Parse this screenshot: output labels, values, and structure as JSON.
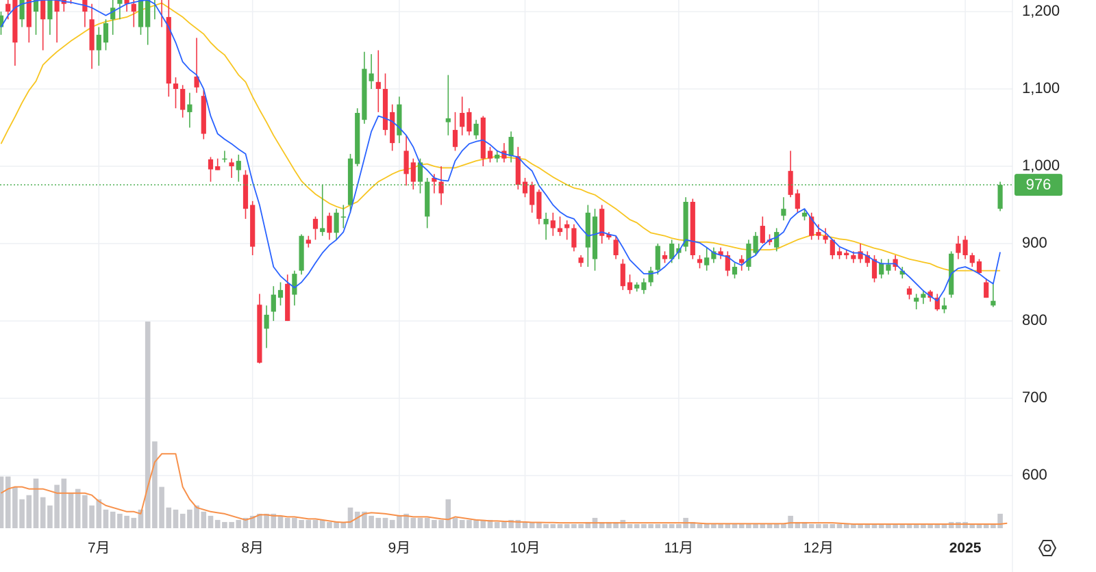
{
  "chart_data": {
    "type": "candlestick",
    "categories": [
      null,
      null,
      null,
      null,
      null,
      null,
      null,
      null,
      null,
      null,
      null,
      null,
      null,
      null,
      "7月",
      null,
      null,
      null,
      null,
      null,
      null,
      null,
      null,
      null,
      null,
      null,
      null,
      null,
      null,
      null,
      null,
      null,
      null,
      null,
      null,
      null,
      "8月",
      null,
      null,
      null,
      null,
      null,
      null,
      null,
      null,
      null,
      null,
      null,
      null,
      null,
      null,
      null,
      null,
      null,
      null,
      null,
      null,
      "9月",
      null,
      null,
      null,
      null,
      null,
      null,
      null,
      null,
      null,
      null,
      null,
      null,
      null,
      null,
      null,
      null,
      null,
      "10月",
      null,
      null,
      null,
      null,
      null,
      null,
      null,
      null,
      null,
      null,
      null,
      null,
      null,
      null,
      null,
      null,
      null,
      null,
      null,
      null,
      null,
      "11月",
      null,
      null,
      null,
      null,
      null,
      null,
      null,
      null,
      null,
      null,
      null,
      null,
      null,
      null,
      null,
      null,
      null,
      null,
      null,
      "12月",
      null,
      null,
      null,
      null,
      null,
      null,
      null,
      null,
      null,
      null,
      null,
      null,
      null,
      null,
      null,
      null,
      null,
      null,
      null,
      null,
      "2025",
      null,
      null,
      null,
      null,
      null
    ],
    "ohlc": [
      [
        1180,
        1200,
        1170,
        1195
      ],
      [
        1210,
        1230,
        1190,
        1200
      ],
      [
        1220,
        1240,
        1130,
        1160
      ],
      [
        1190,
        1240,
        1180,
        1230
      ],
      [
        1230,
        1250,
        1160,
        1180
      ],
      [
        1200,
        1240,
        1170,
        1220
      ],
      [
        1220,
        1250,
        1150,
        1190
      ],
      [
        1190,
        1240,
        1170,
        1230
      ],
      [
        1230,
        1260,
        1160,
        1200
      ],
      [
        1220,
        1260,
        1200,
        1210
      ],
      [
        1230,
        1260,
        1210,
        1215
      ],
      [
        1240,
        1270,
        1220,
        1230
      ],
      [
        1220,
        1250,
        1180,
        1200
      ],
      [
        1190,
        1210,
        1126,
        1150
      ],
      [
        1150,
        1180,
        1130,
        1170
      ],
      [
        1160,
        1190,
        1150,
        1185
      ],
      [
        1190,
        1220,
        1170,
        1205
      ],
      [
        1210,
        1240,
        1190,
        1220
      ],
      [
        1220,
        1250,
        1200,
        1210
      ],
      [
        1210,
        1240,
        1180,
        1200
      ],
      [
        1180,
        1250,
        1170,
        1235
      ],
      [
        1180,
        1250,
        1157,
        1220
      ],
      [
        1230,
        1260,
        1190,
        1240
      ],
      [
        1240,
        1260,
        1180,
        1215
      ],
      [
        1193,
        1215,
        1090,
        1107
      ],
      [
        1107,
        1115,
        1075,
        1100
      ],
      [
        1100,
        1105,
        1063,
        1073
      ],
      [
        1070,
        1095,
        1050,
        1080
      ],
      [
        1116,
        1166,
        1095,
        1102
      ],
      [
        1091,
        1100,
        1035,
        1042
      ],
      [
        1009,
        1012,
        980,
        996
      ],
      [
        1000,
        1010,
        995,
        995
      ],
      [
        1010,
        1020,
        1005,
        1010
      ],
      [
        1005,
        1010,
        985,
        1000
      ],
      [
        995,
        1015,
        980,
        1007
      ],
      [
        989,
        995,
        932,
        945
      ],
      [
        950,
        955,
        885,
        896
      ],
      [
        821,
        835,
        745,
        746
      ],
      [
        790,
        820,
        765,
        808
      ],
      [
        812,
        845,
        800,
        834
      ],
      [
        830,
        850,
        820,
        840
      ],
      [
        848,
        860,
        800,
        800
      ],
      [
        834,
        865,
        820,
        861
      ],
      [
        865,
        912,
        860,
        910
      ],
      [
        905,
        910,
        895,
        900
      ],
      [
        932,
        935,
        905,
        919
      ],
      [
        915,
        976,
        910,
        920
      ],
      [
        936,
        940,
        905,
        914
      ],
      [
        914,
        945,
        905,
        940
      ],
      [
        935,
        950,
        920,
        935
      ],
      [
        950,
        1016,
        940,
        1010
      ],
      [
        1003,
        1075,
        1000,
        1069
      ],
      [
        1060,
        1148,
        1055,
        1126
      ],
      [
        1110,
        1145,
        1100,
        1120
      ],
      [
        1109,
        1150,
        1070,
        1100
      ],
      [
        1100,
        1120,
        1040,
        1047
      ],
      [
        1070,
        1080,
        1020,
        1030
      ],
      [
        1040,
        1090,
        1030,
        1080
      ],
      [
        1020,
        1040,
        975,
        990
      ],
      [
        1005,
        1010,
        970,
        980
      ],
      [
        980,
        1010,
        965,
        1005
      ],
      [
        935,
        985,
        920,
        980
      ],
      [
        985,
        990,
        965,
        980
      ],
      [
        980,
        1000,
        950,
        965
      ],
      [
        1057,
        1118,
        1040,
        1062
      ],
      [
        1047,
        1070,
        1020,
        1025
      ],
      [
        1069,
        1090,
        1040,
        1051
      ],
      [
        1070,
        1075,
        1040,
        1045
      ],
      [
        1040,
        1060,
        1035,
        1055
      ],
      [
        1063,
        1065,
        1000,
        1010
      ],
      [
        1020,
        1025,
        1005,
        1010
      ],
      [
        1010,
        1020,
        1005,
        1015
      ],
      [
        1020,
        1030,
        1005,
        1010
      ],
      [
        1013,
        1045,
        1005,
        1038
      ],
      [
        1013,
        1025,
        970,
        976
      ],
      [
        980,
        985,
        960,
        965
      ],
      [
        976,
        980,
        940,
        950
      ],
      [
        967,
        970,
        925,
        932
      ],
      [
        925,
        940,
        905,
        932
      ],
      [
        930,
        940,
        910,
        920
      ],
      [
        920,
        935,
        910,
        915
      ],
      [
        925,
        930,
        905,
        920
      ],
      [
        920,
        925,
        890,
        895
      ],
      [
        882,
        885,
        870,
        875
      ],
      [
        895,
        950,
        870,
        940
      ],
      [
        880,
        945,
        865,
        935
      ],
      [
        945,
        950,
        900,
        910
      ],
      [
        912,
        915,
        905,
        908
      ],
      [
        905,
        910,
        880,
        885
      ],
      [
        874,
        880,
        840,
        845
      ],
      [
        850,
        860,
        835,
        840
      ],
      [
        842,
        850,
        838,
        847
      ],
      [
        840,
        855,
        835,
        850
      ],
      [
        850,
        870,
        845,
        865
      ],
      [
        866,
        900,
        860,
        897
      ],
      [
        885,
        890,
        875,
        880
      ],
      [
        880,
        905,
        875,
        900
      ],
      [
        888,
        900,
        880,
        894
      ],
      [
        896,
        960,
        890,
        954
      ],
      [
        954,
        958,
        880,
        885
      ],
      [
        880,
        885,
        868,
        875
      ],
      [
        872,
        895,
        865,
        882
      ],
      [
        880,
        895,
        875,
        890
      ],
      [
        890,
        895,
        880,
        885
      ],
      [
        885,
        890,
        858,
        865
      ],
      [
        860,
        875,
        855,
        870
      ],
      [
        880,
        885,
        865,
        875
      ],
      [
        870,
        905,
        865,
        900
      ],
      [
        888,
        915,
        885,
        910
      ],
      [
        923,
        935,
        900,
        901
      ],
      [
        905,
        912,
        898,
        902
      ],
      [
        895,
        920,
        890,
        915
      ],
      [
        936,
        960,
        930,
        945
      ],
      [
        994,
        1020,
        960,
        963
      ],
      [
        965,
        970,
        940,
        945
      ],
      [
        935,
        945,
        930,
        940
      ],
      [
        935,
        940,
        905,
        910
      ],
      [
        915,
        925,
        905,
        910
      ],
      [
        910,
        920,
        900,
        905
      ],
      [
        905,
        905,
        880,
        885
      ],
      [
        890,
        895,
        880,
        885
      ],
      [
        888,
        892,
        880,
        885
      ],
      [
        885,
        890,
        875,
        880
      ],
      [
        890,
        900,
        875,
        880
      ],
      [
        885,
        890,
        870,
        875
      ],
      [
        880,
        885,
        850,
        855
      ],
      [
        860,
        880,
        855,
        875
      ],
      [
        865,
        880,
        860,
        873
      ],
      [
        880,
        885,
        865,
        870
      ],
      [
        860,
        870,
        855,
        865
      ],
      [
        842,
        845,
        828,
        834
      ],
      [
        825,
        835,
        815,
        830
      ],
      [
        830,
        840,
        822,
        835
      ],
      [
        838,
        840,
        825,
        830
      ],
      [
        830,
        835,
        813,
        815
      ],
      [
        815,
        830,
        810,
        820
      ],
      [
        834,
        890,
        830,
        887
      ],
      [
        900,
        910,
        880,
        888
      ],
      [
        905,
        910,
        880,
        885
      ],
      [
        885,
        888,
        870,
        875
      ],
      [
        877,
        880,
        860,
        862
      ],
      [
        850,
        855,
        830,
        830
      ],
      [
        820,
        850,
        818,
        826
      ],
      [
        945,
        980,
        942,
        976
      ]
    ],
    "up_color": "#4caf50",
    "down_color": "#f23645",
    "ma_short": [
      1180,
      1195,
      1205,
      1210,
      1212,
      1214,
      1215,
      1215,
      1215,
      1213,
      1212,
      1210,
      1208,
      1205,
      1200,
      1195,
      1200,
      1205,
      1210,
      1212,
      1214,
      1215,
      1210,
      1195,
      1180,
      1160,
      1135,
      1125,
      1118,
      1100,
      1065,
      1042,
      1035,
      1029,
      1022,
      1016,
      980,
      950,
      910,
      870,
      858,
      850,
      843,
      850,
      861,
      875,
      888,
      898,
      905,
      915,
      941,
      975,
      1010,
      1045,
      1065,
      1062,
      1058,
      1050,
      1040,
      1025,
      1003,
      995,
      985,
      982,
      981,
      1007,
      1020,
      1029,
      1032,
      1034,
      1028,
      1020,
      1016,
      1014,
      1012,
      1002,
      994,
      975,
      963,
      950,
      941,
      935,
      932,
      920,
      910,
      912,
      915,
      912,
      910,
      895,
      879,
      870,
      861,
      861,
      863,
      870,
      879,
      890,
      905,
      903,
      901,
      895,
      888,
      885,
      883,
      876,
      872,
      880,
      885,
      897,
      905,
      908,
      915,
      932,
      940,
      945,
      932,
      920,
      914,
      905,
      896,
      892,
      888,
      888,
      884,
      878,
      874,
      874,
      874,
      865,
      857,
      848,
      839,
      832,
      826,
      840,
      861,
      868,
      870,
      866,
      861,
      854,
      848,
      889
    ],
    "ma_short_color": "#2962ff",
    "ma_long": [
      1029,
      1047,
      1064,
      1082,
      1098,
      1110,
      1131,
      1140,
      1148,
      1155,
      1162,
      1168,
      1174,
      1180,
      1184,
      1187,
      1189,
      1191,
      1193,
      1197,
      1202,
      1205,
      1208,
      1211,
      1205,
      1199,
      1193,
      1185,
      1178,
      1171,
      1160,
      1151,
      1144,
      1131,
      1118,
      1109,
      1090,
      1073,
      1057,
      1040,
      1025,
      1010,
      995,
      981,
      972,
      964,
      958,
      952,
      948,
      945,
      950,
      954,
      963,
      972,
      980,
      985,
      990,
      994,
      996,
      998,
      1002,
      1003,
      1000,
      998,
      998,
      998,
      1001,
      1004,
      1007,
      1009,
      1011,
      1013,
      1012,
      1011,
      1010,
      1009,
      1003,
      998,
      992,
      986,
      981,
      976,
      972,
      970,
      966,
      963,
      957,
      951,
      945,
      938,
      931,
      927,
      920,
      914,
      912,
      910,
      907,
      905,
      904,
      903,
      902,
      902,
      901,
      899,
      897,
      895,
      893,
      892,
      892,
      892,
      892,
      893,
      897,
      901,
      905,
      908,
      911,
      912,
      910,
      908,
      906,
      905,
      903,
      900,
      897,
      894,
      892,
      889,
      886,
      883,
      880,
      878,
      876,
      874,
      870,
      867,
      865,
      865,
      865,
      865,
      865,
      865,
      865,
      865
    ],
    "ma_long_color": "#f7c520",
    "volume": [
      25,
      25,
      20,
      14,
      16,
      24,
      15,
      11,
      21,
      24,
      17,
      19,
      16,
      11,
      14,
      9,
      8,
      7,
      6,
      5,
      9,
      100,
      42,
      20,
      10,
      9,
      7,
      9,
      11,
      8,
      6,
      4,
      3,
      3,
      4,
      5,
      6,
      7,
      7,
      7,
      6,
      5,
      5,
      4,
      4,
      4,
      4,
      3,
      3,
      3,
      10,
      8,
      8,
      6,
      5,
      5,
      4,
      6,
      7,
      5,
      5,
      5,
      4,
      4,
      14,
      5,
      4,
      4,
      4,
      4,
      4,
      3,
      3,
      4,
      4,
      3,
      3,
      3,
      2,
      2,
      2,
      2,
      2,
      2,
      3,
      5,
      3,
      3,
      3,
      4,
      2,
      2,
      2,
      2,
      2,
      2,
      2,
      2,
      5,
      3,
      2,
      2,
      2,
      2,
      2,
      2,
      2,
      2,
      2,
      2,
      2,
      2,
      2,
      6,
      3,
      3,
      2,
      2,
      2,
      2,
      2,
      2,
      2,
      2,
      2,
      2,
      2,
      2,
      2,
      2,
      2,
      2,
      2,
      2,
      2,
      2,
      3,
      3,
      3,
      2,
      2,
      2,
      2,
      7
    ],
    "volume_color": "#c8c9ce",
    "volume_ma": [
      17,
      19,
      20,
      20,
      19,
      19,
      19,
      18,
      17,
      17,
      17,
      17,
      17,
      16,
      13,
      11,
      10,
      9,
      8,
      8,
      7,
      20,
      32,
      36,
      36,
      36,
      20,
      14,
      10,
      9,
      8,
      7.5,
      7,
      6,
      5,
      4,
      5,
      6.5,
      6.5,
      6,
      6,
      5.5,
      5.5,
      5,
      4.5,
      4.5,
      4,
      3.5,
      3,
      2.8,
      3,
      5,
      7,
      7.5,
      7.3,
      7,
      6.5,
      6,
      6,
      5.5,
      5.5,
      5.5,
      5,
      4.5,
      4.2,
      5.5,
      5,
      4.5,
      4,
      3.8,
      3.5,
      3.5,
      3.3,
      3.2,
      3,
      3,
      2.8,
      2.8,
      2.7,
      2.7,
      2.6,
      2.6,
      2.6,
      2.6,
      2.6,
      2.6,
      2.6,
      2.6,
      2.6,
      2.6,
      2.6,
      2.6,
      2.6,
      2.6,
      2.6,
      2.6,
      2.6,
      2.6,
      2.6,
      2.6,
      2.4,
      2.2,
      2.2,
      2.2,
      2.2,
      2.2,
      2.2,
      2.2,
      2.2,
      2.2,
      2.2,
      2.2,
      2.2,
      2.6,
      2.6,
      2.6,
      2.6,
      2.6,
      2.6,
      2.6,
      2.4,
      2.2,
      2,
      2,
      2,
      2,
      2,
      2,
      2,
      2,
      2,
      2,
      2,
      2,
      2,
      2,
      2,
      2,
      2,
      2,
      2,
      2,
      2,
      2,
      2.4
    ],
    "volume_ma_color": "#f7904a",
    "ylim": [
      532,
      1215
    ],
    "yticks": [
      {
        "value": 600,
        "label": "600"
      },
      {
        "value": 700,
        "label": "700"
      },
      {
        "value": 800,
        "label": "800"
      },
      {
        "value": 900,
        "label": "900"
      },
      {
        "value": 1000,
        "label": "1,000"
      },
      {
        "value": 1100,
        "label": "1,100"
      },
      {
        "value": 1200,
        "label": "1,200"
      }
    ],
    "y2lim": [
      0,
      100
    ],
    "grid": true
  }
}
